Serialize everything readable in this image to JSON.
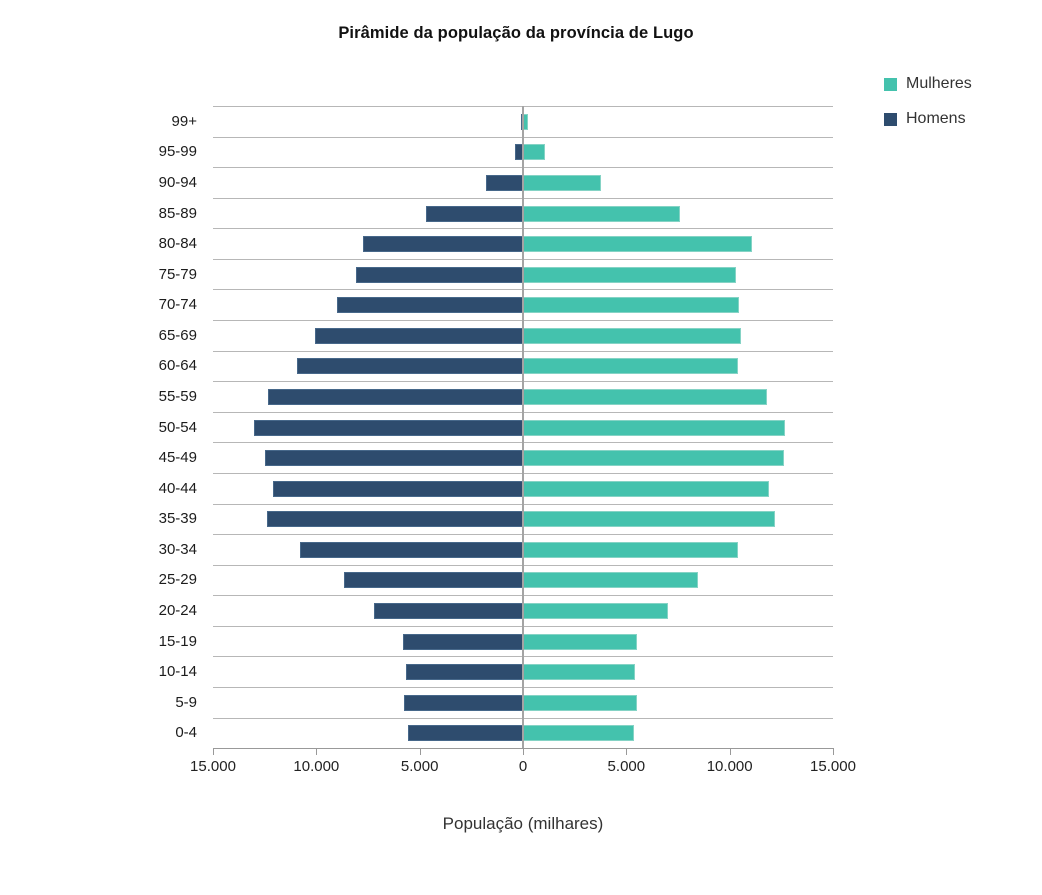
{
  "title": "Pirâmide da população da província de Lugo",
  "legend": {
    "position": "top-right",
    "items": [
      {
        "label": "Mulheres",
        "color": "#44c2ad"
      },
      {
        "label": "Homens",
        "color": "#2e4c6e"
      }
    ]
  },
  "chart_data": {
    "type": "bar",
    "subtype": "population-pyramid-horizontal",
    "title": "Pirâmide da população da província de Lugo",
    "xlabel": "População (milhares)",
    "ylabel": "",
    "x_max_each_side": 15000,
    "x_tick_labels": [
      "15.000",
      "10.000",
      "5.000",
      "0",
      "5.000",
      "10.000",
      "15.000"
    ],
    "grid": "horizontal",
    "legend_position": "top-right",
    "categories": [
      "99+",
      "95-99",
      "90-94",
      "85-89",
      "80-84",
      "75-79",
      "70-74",
      "65-69",
      "60-64",
      "55-59",
      "50-54",
      "45-49",
      "40-44",
      "35-39",
      "30-34",
      "25-29",
      "20-24",
      "15-19",
      "10-14",
      "5-9",
      "0-4"
    ],
    "series": [
      {
        "name": "Mulheres",
        "side": "right",
        "color": "#44c2ad",
        "border_color": "#85d3c5",
        "values": [
          230,
          1050,
          3750,
          7600,
          11100,
          10300,
          10450,
          10550,
          10400,
          11800,
          12700,
          12650,
          11900,
          12200,
          10400,
          8450,
          7000,
          5500,
          5400,
          5500,
          5350
        ]
      },
      {
        "name": "Homens",
        "side": "left",
        "color": "#2e4c6e",
        "border_color": "#47688a",
        "values": [
          100,
          400,
          1800,
          4700,
          7750,
          8100,
          9000,
          10050,
          10950,
          12350,
          13000,
          12500,
          12100,
          12400,
          10800,
          8650,
          7200,
          5800,
          5650,
          5750,
          5550
        ]
      }
    ]
  }
}
